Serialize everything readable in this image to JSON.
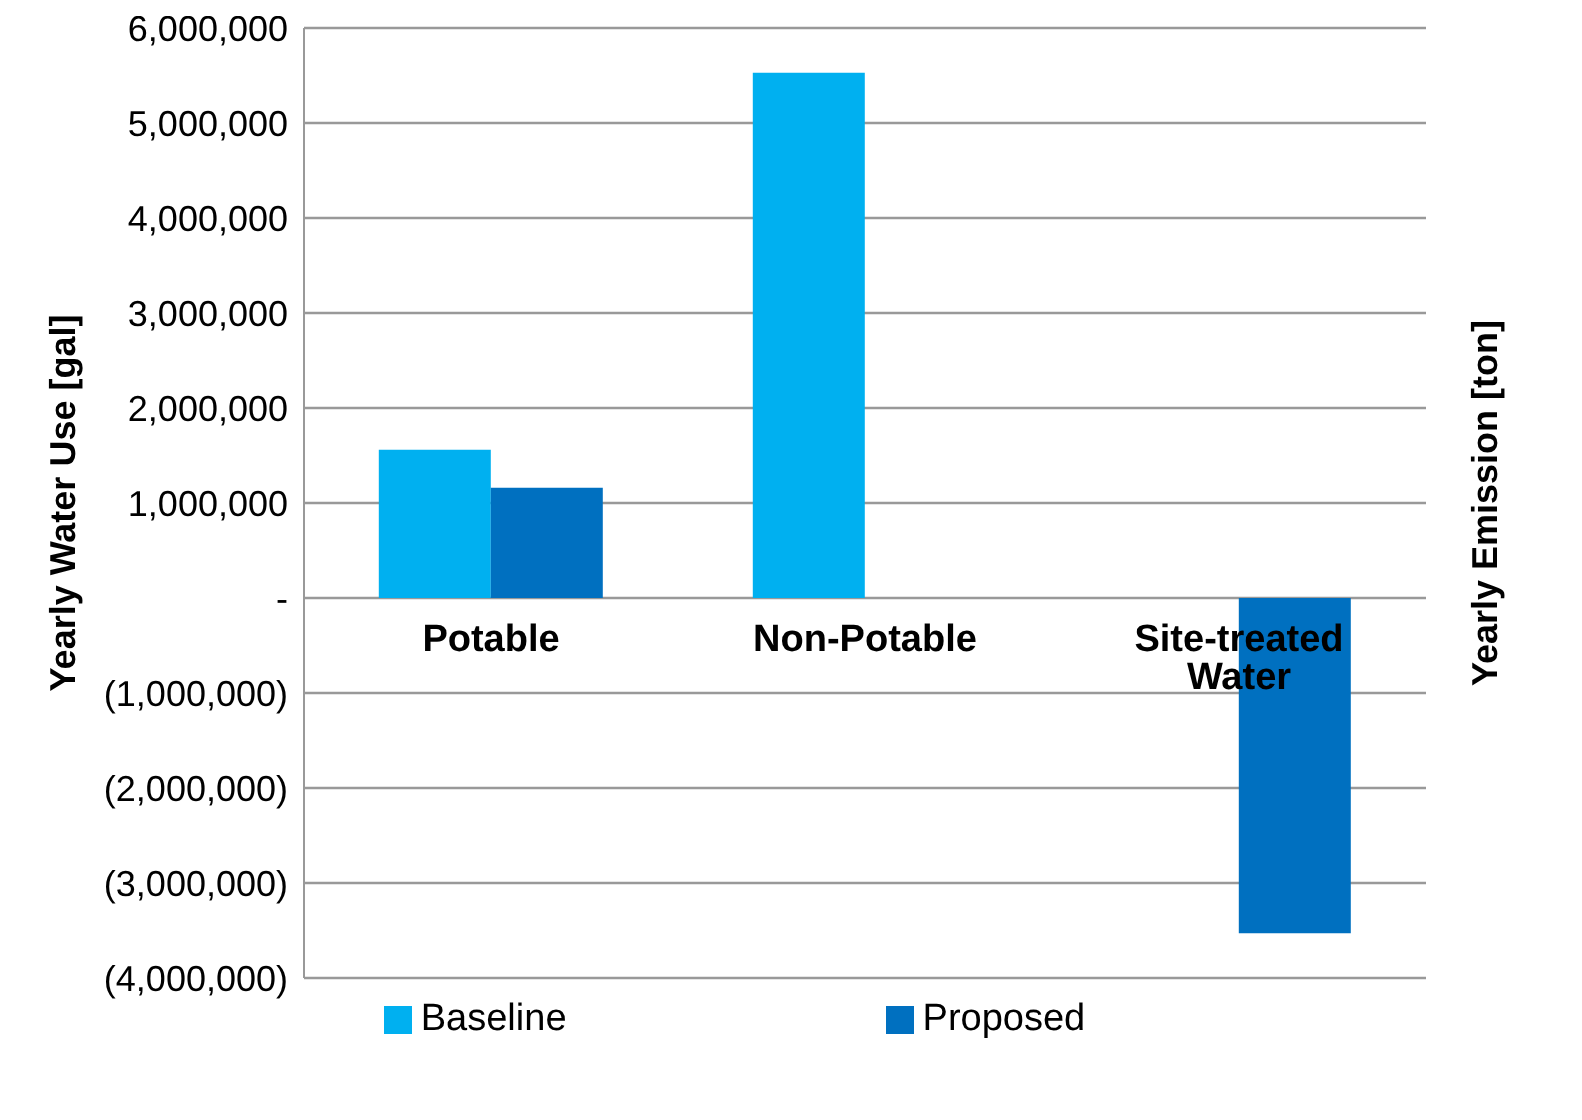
{
  "chart_data": {
    "type": "bar",
    "categories": [
      "Potable",
      "Non-Potable",
      "Site-treated Water"
    ],
    "series": [
      {
        "name": "Baseline",
        "color": "#00b0f0",
        "values": [
          1560000,
          5530000,
          null
        ]
      },
      {
        "name": "Proposed",
        "color": "#0070c0",
        "values": [
          1160000,
          null,
          -3530000
        ]
      }
    ],
    "ylabel": "Yearly Water Use [gal]",
    "y2label": "Yearly Emission [ton]",
    "ylim": [
      -4000000,
      6000000
    ],
    "yticks": [
      {
        "value": -4000000,
        "label": "(4,000,000)"
      },
      {
        "value": -3000000,
        "label": "(3,000,000)"
      },
      {
        "value": -2000000,
        "label": "(2,000,000)"
      },
      {
        "value": -1000000,
        "label": "(1,000,000)"
      },
      {
        "value": 0,
        "label": "-"
      },
      {
        "value": 1000000,
        "label": "1,000,000"
      },
      {
        "value": 2000000,
        "label": "2,000,000"
      },
      {
        "value": 3000000,
        "label": "3,000,000"
      },
      {
        "value": 4000000,
        "label": "4,000,000"
      },
      {
        "value": 5000000,
        "label": "5,000,000"
      },
      {
        "value": 6000000,
        "label": "6,000,000"
      }
    ],
    "grid": "y",
    "legend": "bottom"
  }
}
